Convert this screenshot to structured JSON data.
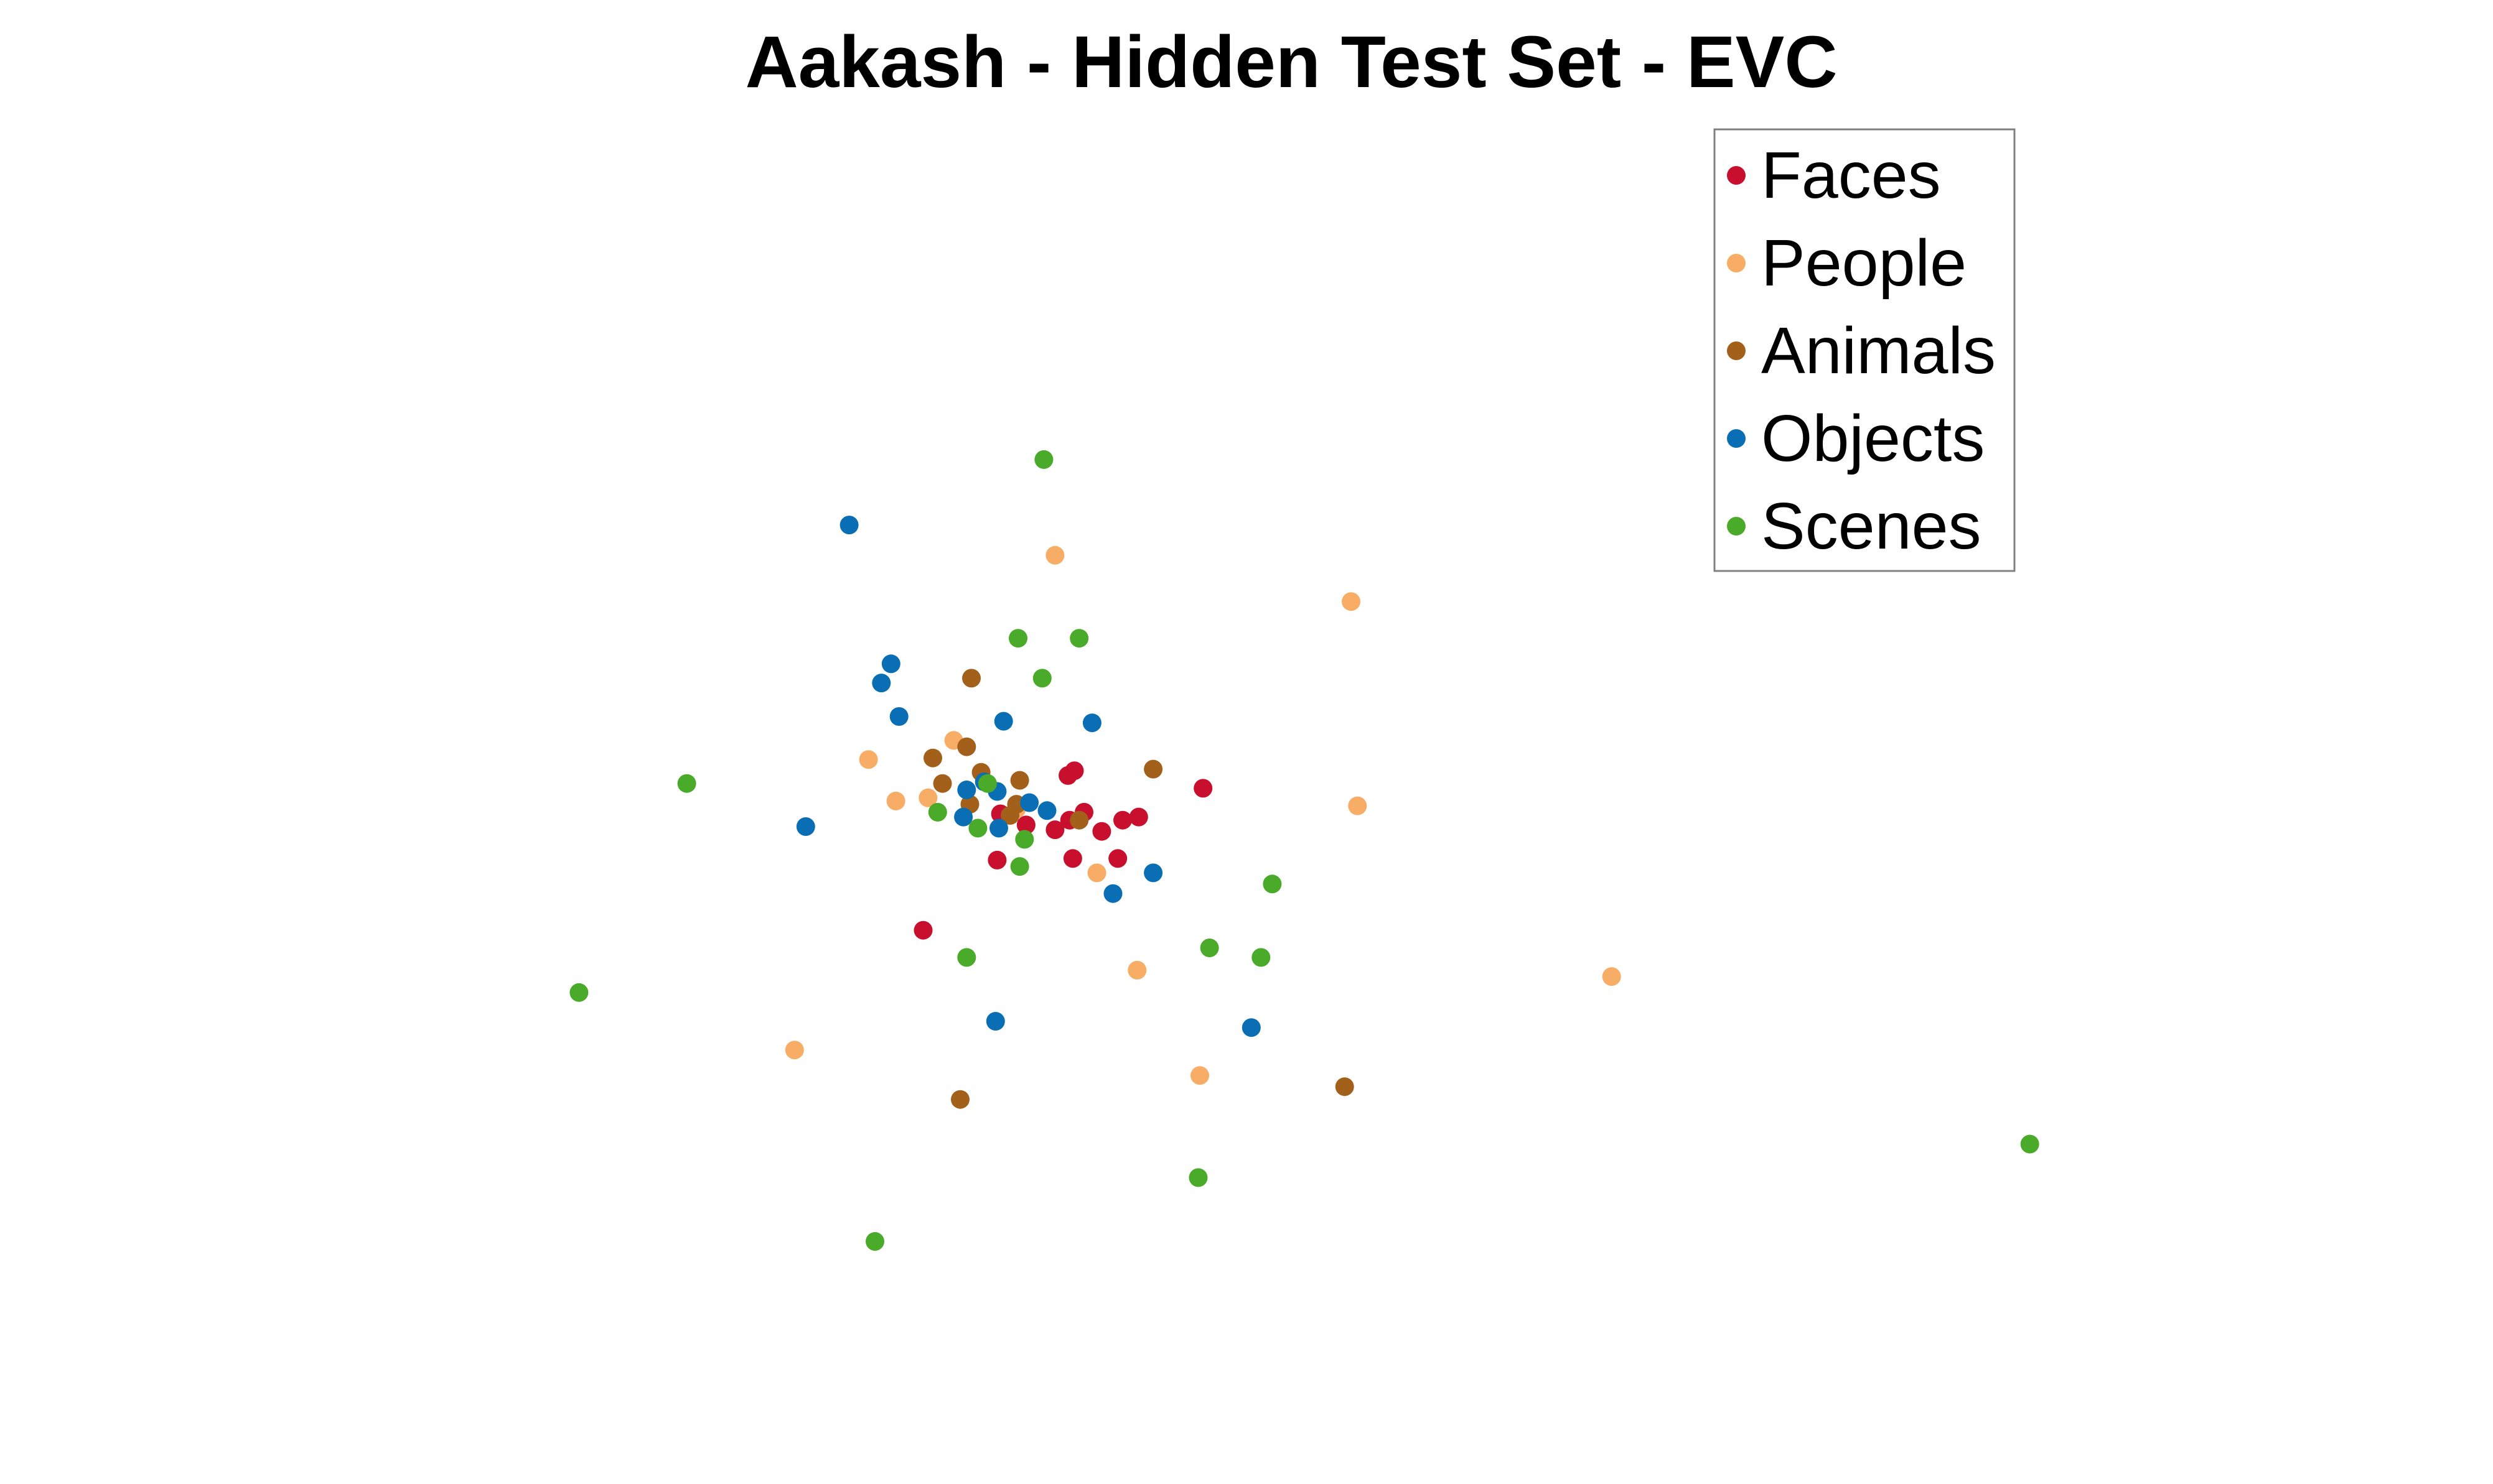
{
  "chart_data": {
    "type": "scatter",
    "title": "Aakash - Hidden Test Set - EVC",
    "xlabel": "",
    "ylabel": "",
    "xlim": [
      0,
      1550
    ],
    "ylim": [
      0,
      930
    ],
    "axes_visible": false,
    "grid": false,
    "legend_position": "top-right",
    "series": [
      {
        "name": "Faces",
        "color": "#c8102e",
        "x": [
          664,
          668,
          748,
          708,
          698,
          685,
          674,
          665,
          656,
          638,
          622,
          620,
          667,
          695,
          574
        ],
        "y": [
          444,
          447,
          436,
          418,
          416,
          409,
          421,
          416,
          410,
          413,
          420,
          391,
          392,
          392,
          347
        ]
      },
      {
        "name": "People",
        "color": "#f8ad66",
        "x": [
          656,
          840,
          540,
          557,
          577,
          593,
          844,
          682,
          707,
          1002,
          494,
          746,
          632
        ],
        "y": [
          582,
          553,
          454,
          428,
          430,
          466,
          425,
          383,
          322,
          318,
          272,
          256,
          423
        ]
      },
      {
        "name": "Animals",
        "color": "#a3601a",
        "x": [
          604,
          580,
          601,
          586,
          610,
          634,
          603,
          632,
          671,
          717,
          836,
          597,
          628
        ],
        "y": [
          505,
          455,
          462,
          439,
          446,
          441,
          426,
          426,
          416,
          448,
          249,
          241,
          419
        ]
      },
      {
        "name": "Objects",
        "color": "#0a6eb4",
        "x": [
          528,
          554,
          548,
          559,
          624,
          679,
          601,
          620,
          640,
          651,
          599,
          621,
          501,
          717,
          692,
          619,
          778,
          612
        ],
        "y": [
          601,
          514,
          502,
          481,
          478,
          477,
          435,
          434,
          427,
          422,
          418,
          411,
          412,
          383,
          370,
          290,
          286,
          440
        ]
      },
      {
        "name": "Scenes",
        "color": "#4aaa2a",
        "x": [
          649,
          633,
          671,
          648,
          427,
          583,
          608,
          637,
          634,
          614,
          791,
          752,
          784,
          601,
          360,
          745,
          1262,
          544
        ],
        "y": [
          642,
          530,
          530,
          505,
          439,
          421,
          411,
          404,
          387,
          439,
          376,
          336,
          330,
          330,
          308,
          192,
          213,
          152
        ]
      }
    ]
  }
}
